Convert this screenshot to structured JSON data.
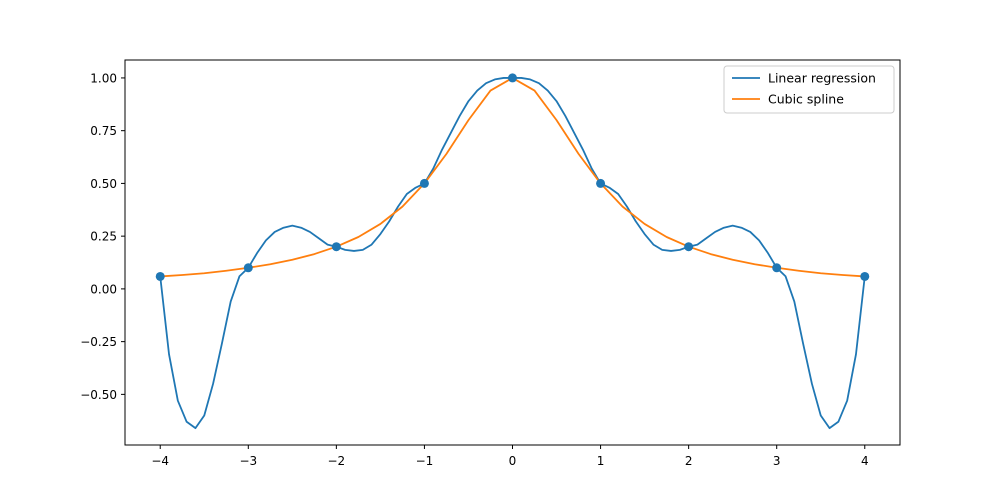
{
  "chart_data": {
    "type": "line",
    "title": "",
    "xlabel": "",
    "ylabel": "",
    "xlim": [
      -4.4,
      4.4
    ],
    "ylim": [
      -0.74,
      1.085
    ],
    "xticks": [
      -4,
      -3,
      -2,
      -1,
      0,
      1,
      2,
      3,
      4
    ],
    "xtick_labels": [
      "−4",
      "−3",
      "−2",
      "−1",
      "0",
      "1",
      "2",
      "3",
      "4"
    ],
    "yticks": [
      -0.5,
      -0.25,
      0.0,
      0.25,
      0.5,
      0.75,
      1.0
    ],
    "ytick_labels": [
      "−0.50",
      "−0.25",
      "0.00",
      "0.25",
      "0.50",
      "0.75",
      "1.00"
    ],
    "grid": false,
    "legend_position": "top-right",
    "series": [
      {
        "name": "Linear regression",
        "color": "#1f77b4",
        "style": "line",
        "x": [
          -4.0,
          -3.9,
          -3.8,
          -3.7,
          -3.6,
          -3.5,
          -3.4,
          -3.3,
          -3.2,
          -3.1,
          -3.0,
          -2.9,
          -2.8,
          -2.7,
          -2.6,
          -2.5,
          -2.4,
          -2.3,
          -2.2,
          -2.1,
          -2.0,
          -1.9,
          -1.8,
          -1.7,
          -1.6,
          -1.5,
          -1.4,
          -1.3,
          -1.2,
          -1.1,
          -1.0,
          -0.9,
          -0.8,
          -0.7,
          -0.6,
          -0.5,
          -0.4,
          -0.3,
          -0.2,
          -0.1,
          0.0,
          0.1,
          0.2,
          0.3,
          0.4,
          0.5,
          0.6,
          0.7,
          0.8,
          0.9,
          1.0,
          1.1,
          1.2,
          1.3,
          1.4,
          1.5,
          1.6,
          1.7,
          1.8,
          1.9,
          2.0,
          2.1,
          2.2,
          2.3,
          2.4,
          2.5,
          2.6,
          2.7,
          2.8,
          2.9,
          3.0,
          3.1,
          3.2,
          3.3,
          3.4,
          3.5,
          3.6,
          3.7,
          3.8,
          3.9,
          4.0
        ],
        "y": [
          0.059,
          -0.31,
          -0.53,
          -0.63,
          -0.66,
          -0.6,
          -0.45,
          -0.26,
          -0.06,
          0.06,
          0.1,
          0.17,
          0.23,
          0.27,
          0.29,
          0.3,
          0.29,
          0.27,
          0.24,
          0.21,
          0.2,
          0.185,
          0.18,
          0.185,
          0.21,
          0.26,
          0.32,
          0.39,
          0.45,
          0.48,
          0.5,
          0.57,
          0.66,
          0.74,
          0.82,
          0.89,
          0.94,
          0.975,
          0.993,
          1.0,
          1.0,
          1.0,
          0.993,
          0.975,
          0.94,
          0.89,
          0.82,
          0.74,
          0.66,
          0.57,
          0.5,
          0.48,
          0.45,
          0.39,
          0.32,
          0.26,
          0.21,
          0.185,
          0.18,
          0.185,
          0.2,
          0.21,
          0.24,
          0.27,
          0.29,
          0.3,
          0.29,
          0.27,
          0.23,
          0.17,
          0.1,
          0.06,
          -0.06,
          -0.26,
          -0.45,
          -0.6,
          -0.66,
          -0.63,
          -0.53,
          -0.31,
          0.059
        ]
      },
      {
        "name": "Cubic spline",
        "color": "#ff7f0e",
        "style": "line",
        "x": [
          -4.0,
          -3.75,
          -3.5,
          -3.25,
          -3.0,
          -2.75,
          -2.5,
          -2.25,
          -2.0,
          -1.75,
          -1.5,
          -1.25,
          -1.0,
          -0.75,
          -0.5,
          -0.25,
          0.0,
          0.25,
          0.5,
          0.75,
          1.0,
          1.25,
          1.5,
          1.75,
          2.0,
          2.25,
          2.5,
          2.75,
          3.0,
          3.25,
          3.5,
          3.75,
          4.0
        ],
        "y": [
          0.059,
          0.066,
          0.074,
          0.086,
          0.1,
          0.117,
          0.138,
          0.165,
          0.2,
          0.246,
          0.308,
          0.39,
          0.5,
          0.64,
          0.8,
          0.94,
          1.0,
          0.94,
          0.8,
          0.64,
          0.5,
          0.39,
          0.308,
          0.246,
          0.2,
          0.165,
          0.138,
          0.117,
          0.1,
          0.086,
          0.074,
          0.066,
          0.059
        ]
      },
      {
        "name": "",
        "color": "#1f77b4",
        "style": "points",
        "x": [
          -4,
          -3,
          -2,
          -1,
          0,
          1,
          2,
          3,
          4
        ],
        "y": [
          0.059,
          0.1,
          0.2,
          0.5,
          1.0,
          0.5,
          0.2,
          0.1,
          0.059
        ]
      }
    ]
  }
}
